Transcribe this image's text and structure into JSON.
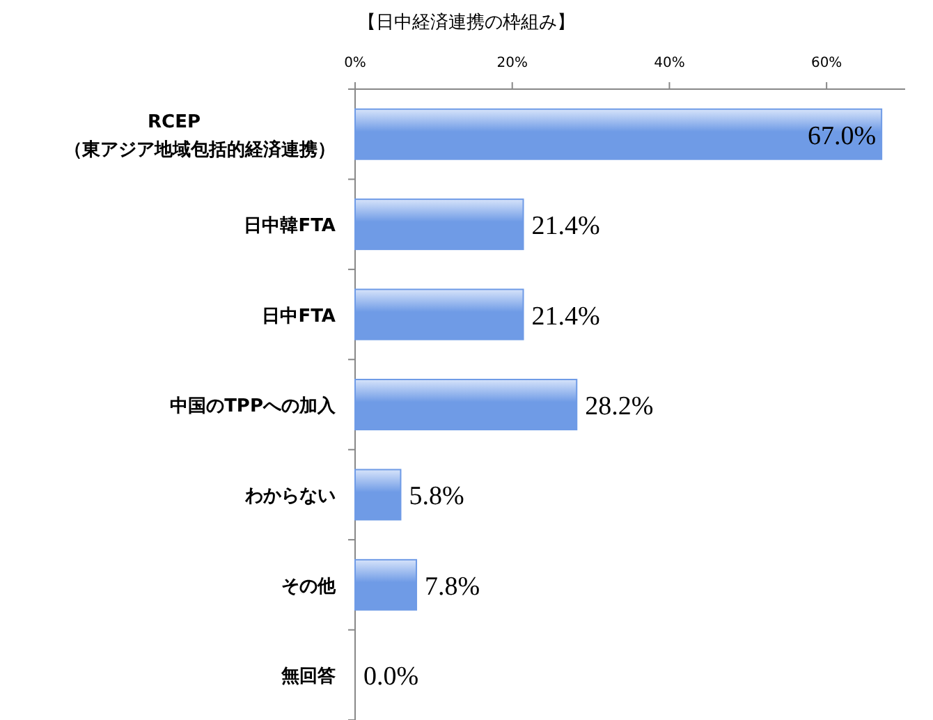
{
  "chart_data": {
    "type": "bar",
    "orientation": "horizontal",
    "title": "【日中経済連携の枠組み】",
    "categories": [
      "RCEP\n（東アジア地域包括的経済連携）",
      "日中韓FTA",
      "日中FTA",
      "中国のTPPへの加入",
      "わからない",
      "その他",
      "無回答"
    ],
    "values": [
      67.0,
      21.4,
      21.4,
      28.2,
      5.8,
      7.8,
      0.0
    ],
    "value_labels": [
      "67.0%",
      "21.4%",
      "21.4%",
      "28.2%",
      "5.8%",
      "7.8%",
      "0.0%"
    ],
    "color": "#6f9be6",
    "xlim": [
      0,
      70
    ],
    "xticks": [
      {
        "value": 0,
        "label": "0%"
      },
      {
        "value": 20,
        "label": "20%"
      },
      {
        "value": 40,
        "label": "40%"
      },
      {
        "value": 60,
        "label": "60%"
      }
    ]
  }
}
